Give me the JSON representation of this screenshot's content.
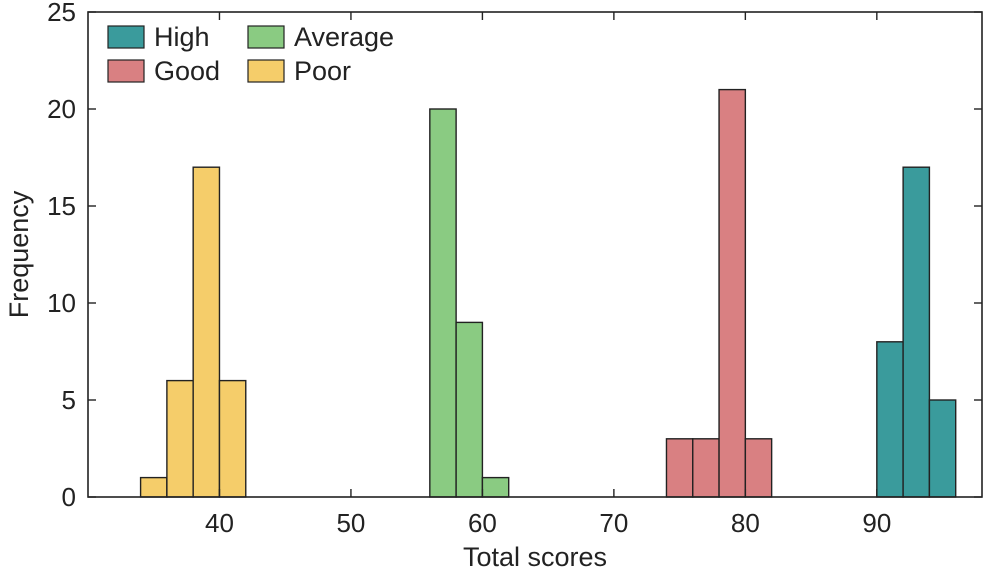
{
  "chart_data": {
    "type": "bar",
    "title": "",
    "xlabel": "Total scores",
    "ylabel": "Frequency",
    "xlim": [
      30,
      98
    ],
    "ylim": [
      0,
      25
    ],
    "xticks": [
      40,
      50,
      60,
      70,
      80,
      90
    ],
    "yticks": [
      0,
      5,
      10,
      15,
      20,
      25
    ],
    "bin_width": 2,
    "grid": false,
    "legend_position": "top-left",
    "series": [
      {
        "name": "High",
        "color": "#3a9b9c",
        "bins": [
          {
            "start": 90,
            "end": 92,
            "value": 8
          },
          {
            "start": 92,
            "end": 94,
            "value": 17
          },
          {
            "start": 94,
            "end": 96,
            "value": 5
          }
        ]
      },
      {
        "name": "Good",
        "color": "#d98082",
        "bins": [
          {
            "start": 74,
            "end": 76,
            "value": 3
          },
          {
            "start": 76,
            "end": 78,
            "value": 3
          },
          {
            "start": 78,
            "end": 80,
            "value": 21
          },
          {
            "start": 80,
            "end": 82,
            "value": 3
          }
        ]
      },
      {
        "name": "Average",
        "color": "#8acb82",
        "bins": [
          {
            "start": 56,
            "end": 58,
            "value": 20
          },
          {
            "start": 58,
            "end": 60,
            "value": 9
          },
          {
            "start": 60,
            "end": 62,
            "value": 1
          }
        ]
      },
      {
        "name": "Poor",
        "color": "#f5cd6a",
        "bins": [
          {
            "start": 34,
            "end": 36,
            "value": 1
          },
          {
            "start": 36,
            "end": 38,
            "value": 6
          },
          {
            "start": 38,
            "end": 40,
            "value": 17
          },
          {
            "start": 40,
            "end": 42,
            "value": 6
          }
        ]
      }
    ]
  }
}
